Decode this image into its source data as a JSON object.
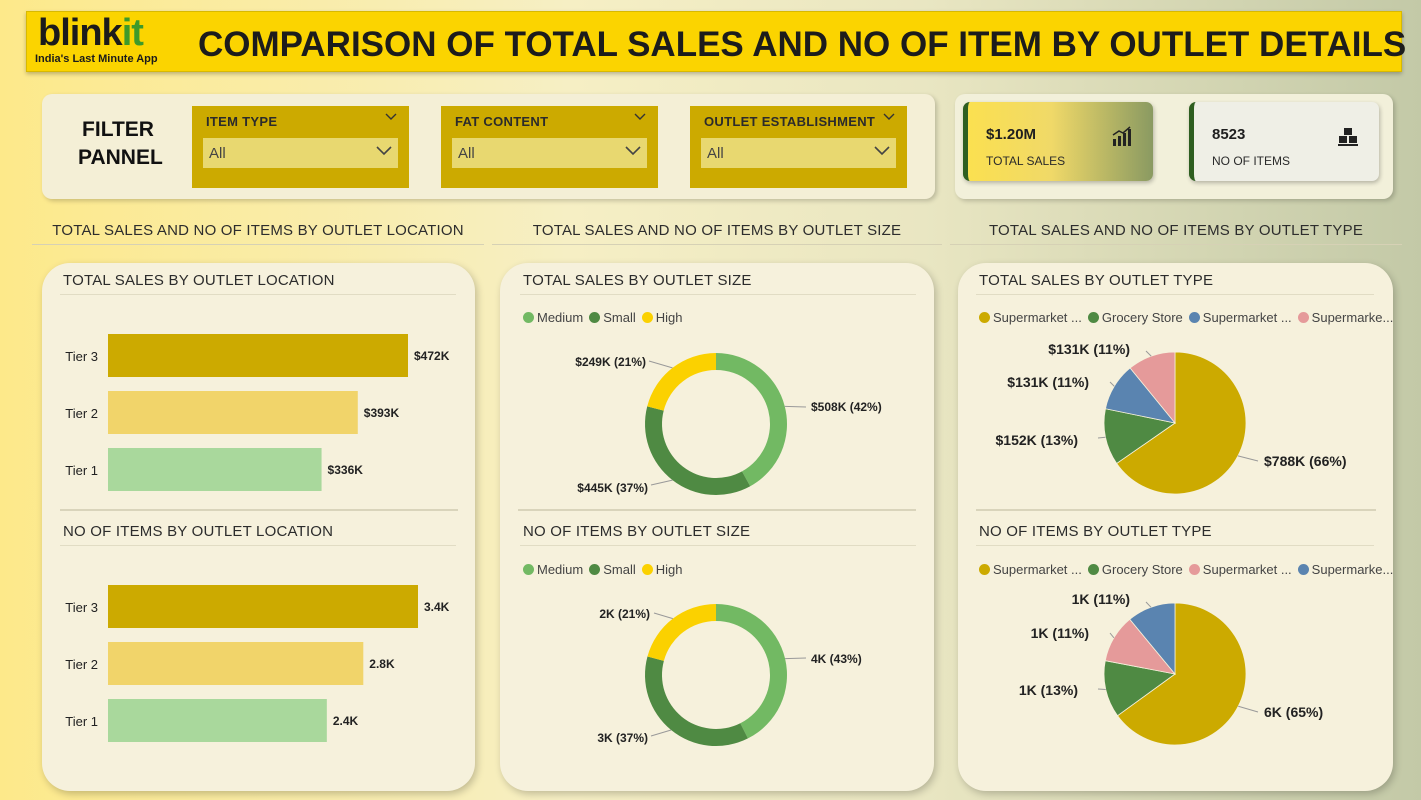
{
  "header": {
    "logo_text_main": "blink",
    "logo_text_accent": "it",
    "logo_tagline": "India's Last Minute App",
    "title": "COMPARISON OF TOTAL SALES AND NO OF ITEM BY OUTLET DETAILS"
  },
  "filter_panel": {
    "title_line1": "FILTER",
    "title_line2": "PANNEL",
    "slicers": [
      {
        "label": "ITEM TYPE",
        "value": "All"
      },
      {
        "label": "FAT CONTENT",
        "value": "All"
      },
      {
        "label": "OUTLET ESTABLISHMENT",
        "value": "All"
      }
    ]
  },
  "kpis": [
    {
      "value": "$1.20M",
      "label": "TOTAL SALES",
      "icon": "chart-bars-icon"
    },
    {
      "value": "8523",
      "label": "NO OF ITEMS",
      "icon": "boxes-icon"
    }
  ],
  "sections": {
    "location": "TOTAL SALES AND NO OF ITEMS BY OUTLET LOCATION",
    "size": "TOTAL SALES AND NO OF ITEMS BY OUTLET SIZE",
    "type": "TOTAL SALES AND NO OF ITEMS BY OUTLET TYPE"
  },
  "colors": {
    "tier3": "#ccaa00",
    "tier2": "#f1d46a",
    "tier1": "#a9d89c",
    "medium": "#72b963",
    "small": "#4f8a43",
    "high": "#fbd100",
    "supermarket1": "#ccaa00",
    "grocery": "#4f8a43",
    "supermarket_blue": "#5a84b0",
    "supermarket_pink": "#e59a9a"
  },
  "chart_data": [
    {
      "type": "bar",
      "orientation": "horizontal",
      "title": "TOTAL SALES BY OUTLET LOCATION",
      "categories": [
        "Tier 3",
        "Tier 2",
        "Tier 1"
      ],
      "values": [
        472,
        393,
        336
      ],
      "data_labels": [
        "$472K",
        "$393K",
        "$336K"
      ],
      "unit": "K USD"
    },
    {
      "type": "bar",
      "orientation": "horizontal",
      "title": "NO OF ITEMS BY OUTLET LOCATION",
      "categories": [
        "Tier 3",
        "Tier 2",
        "Tier 1"
      ],
      "values": [
        3.4,
        2.8,
        2.4
      ],
      "data_labels": [
        "3.4K",
        "2.8K",
        "2.4K"
      ],
      "unit": "K items"
    },
    {
      "type": "pie",
      "style": "donut",
      "title": "TOTAL SALES BY OUTLET SIZE",
      "legend": [
        "Medium",
        "Small",
        "High"
      ],
      "labels": [
        "Medium",
        "Small",
        "High"
      ],
      "values": [
        42,
        37,
        21
      ],
      "data_labels": [
        "$508K (42%)",
        "$445K (37%)",
        "$249K (21%)"
      ]
    },
    {
      "type": "pie",
      "style": "donut",
      "title": "NO OF ITEMS BY OUTLET SIZE",
      "legend": [
        "Medium",
        "Small",
        "High"
      ],
      "labels": [
        "Medium",
        "Small",
        "High"
      ],
      "values": [
        43,
        37,
        21
      ],
      "data_labels": [
        "4K (43%)",
        "3K (37%)",
        "2K (21%)"
      ]
    },
    {
      "type": "pie",
      "title": "TOTAL SALES BY OUTLET TYPE",
      "legend": [
        "Supermarket ...",
        "Grocery Store",
        "Supermarket ...",
        "Supermarke..."
      ],
      "values": [
        66,
        13,
        11,
        11
      ],
      "data_labels": [
        "$788K (66%)",
        "$152K (13%)",
        "$131K (11%)",
        "$131K (11%)"
      ]
    },
    {
      "type": "pie",
      "title": "NO OF ITEMS BY OUTLET TYPE",
      "legend": [
        "Supermarket ...",
        "Grocery Store",
        "Supermarket ...",
        "Supermarke..."
      ],
      "values": [
        65,
        13,
        11,
        11
      ],
      "data_labels": [
        "6K (65%)",
        "1K (13%)",
        "1K (11%)",
        "1K (11%)"
      ]
    }
  ]
}
